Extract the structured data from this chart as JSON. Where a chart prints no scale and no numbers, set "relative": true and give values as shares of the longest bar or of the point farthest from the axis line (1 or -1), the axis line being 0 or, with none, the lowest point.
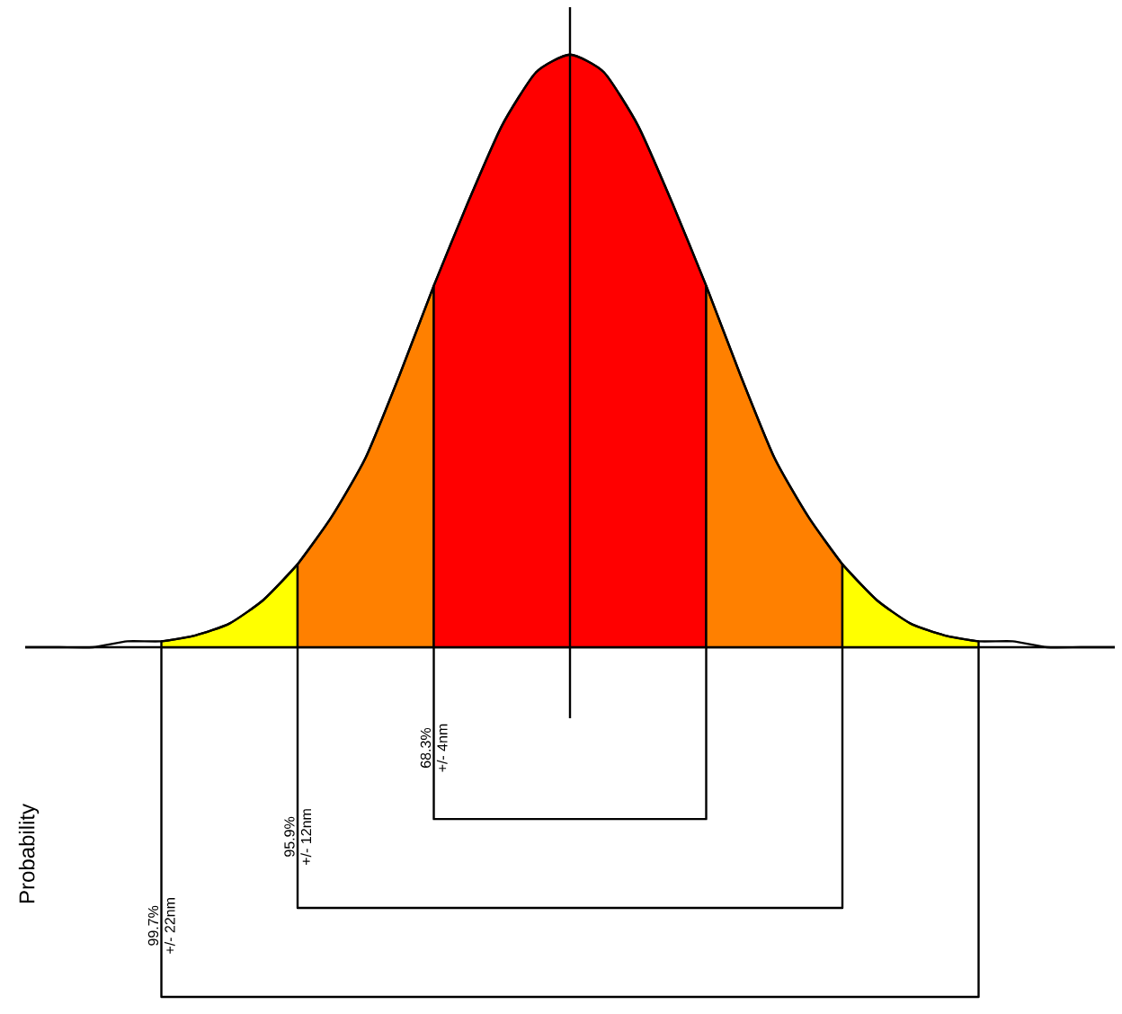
{
  "chart_data": {
    "type": "area",
    "relative": true,
    "categories": [
      null,
      null,
      null,
      null,
      null,
      null,
      null,
      null,
      null,
      null,
      null,
      null,
      null,
      null,
      null,
      null,
      null,
      null,
      null,
      null,
      null,
      null,
      null,
      null,
      null,
      null,
      null,
      null,
      null,
      null,
      null,
      null,
      null
    ],
    "series": [
      {
        "color": "#ffff00",
        "values": [
          null,
          null,
          null,
          null,
          0.01,
          0.02,
          0.04,
          0.08,
          0.14,
          null,
          null,
          null,
          null,
          null,
          null,
          null,
          null,
          null,
          null,
          null,
          null,
          null,
          null,
          null,
          null,
          null,
          null,
          null,
          null,
          null,
          null,
          null,
          null
        ]
      },
      {
        "color": "#ff8000",
        "values": [
          null,
          null,
          null,
          null,
          null,
          null,
          null,
          null,
          0.14,
          0.22,
          0.32,
          0.46,
          0.61,
          null,
          null,
          null,
          null,
          null,
          null,
          null,
          null,
          null,
          null,
          null,
          null,
          null,
          null,
          null,
          null,
          null,
          null,
          null,
          null
        ]
      },
      {
        "color": "#ff0000",
        "values": [
          null,
          null,
          null,
          null,
          null,
          null,
          null,
          null,
          null,
          null,
          null,
          null,
          0.61,
          0.75,
          0.88,
          0.97,
          1,
          0.97,
          0.88,
          0.75,
          0.61,
          null,
          null,
          null,
          null,
          null,
          null,
          null,
          null,
          null,
          null,
          null,
          null
        ]
      },
      {
        "color": "#ff8000",
        "values": [
          null,
          null,
          null,
          null,
          null,
          null,
          null,
          null,
          null,
          null,
          null,
          null,
          null,
          null,
          null,
          null,
          null,
          null,
          null,
          null,
          0.61,
          0.46,
          0.32,
          0.22,
          0.14,
          null,
          null,
          null,
          null,
          null,
          null,
          null,
          null
        ]
      },
      {
        "color": "#ffff00",
        "values": [
          null,
          null,
          null,
          null,
          null,
          null,
          null,
          null,
          null,
          null,
          null,
          null,
          null,
          null,
          null,
          null,
          null,
          null,
          null,
          null,
          null,
          null,
          null,
          null,
          0.14,
          0.08,
          0.04,
          0.02,
          0.01,
          null,
          null,
          null,
          null
        ]
      },
      {
        "type": "line",
        "color": "#000000",
        "values": [
          0.0,
          0.0,
          0.0,
          0.01,
          0.01,
          0.02,
          0.04,
          0.08,
          0.14,
          0.22,
          0.32,
          0.46,
          0.61,
          0.75,
          0.88,
          0.97,
          1,
          0.97,
          0.88,
          0.75,
          0.61,
          0.46,
          0.32,
          0.22,
          0.14,
          0.08,
          0.04,
          0.02,
          0.01,
          0.01,
          0.0,
          0.0,
          0.0
        ]
      }
    ],
    "annotations": [
      "68.3%",
      "+/- 4nm",
      "95.9%",
      "+/- 12nm",
      "99.7%",
      "+/- 22nm",
      "Probability"
    ]
  }
}
